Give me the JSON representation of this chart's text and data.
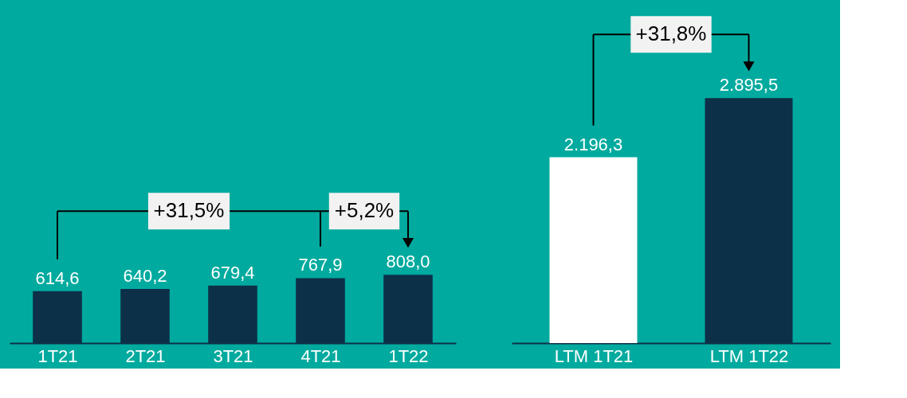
{
  "chart_data": [
    {
      "type": "bar",
      "categories": [
        "1T21",
        "2T21",
        "3T21",
        "4T21",
        "1T22"
      ],
      "values": [
        614.6,
        640.2,
        679.4,
        767.9,
        808.0
      ],
      "colors": [
        "#0d3049",
        "#0d3049",
        "#0d3049",
        "#0d3049",
        "#0d3049"
      ],
      "value_labels": [
        "614,6",
        "640,2",
        "679,4",
        "767,9",
        "808,0"
      ],
      "annotations": [
        "+31,5%",
        "+5,2%"
      ]
    },
    {
      "type": "bar",
      "categories": [
        "LTM 1T21",
        "LTM 1T22"
      ],
      "values": [
        2196.3,
        2895.5
      ],
      "colors": [
        "#ffffff",
        "#0d3049"
      ],
      "value_labels": [
        "2.196,3",
        "2.895,5"
      ],
      "annotations": [
        "+31,8%"
      ]
    }
  ]
}
